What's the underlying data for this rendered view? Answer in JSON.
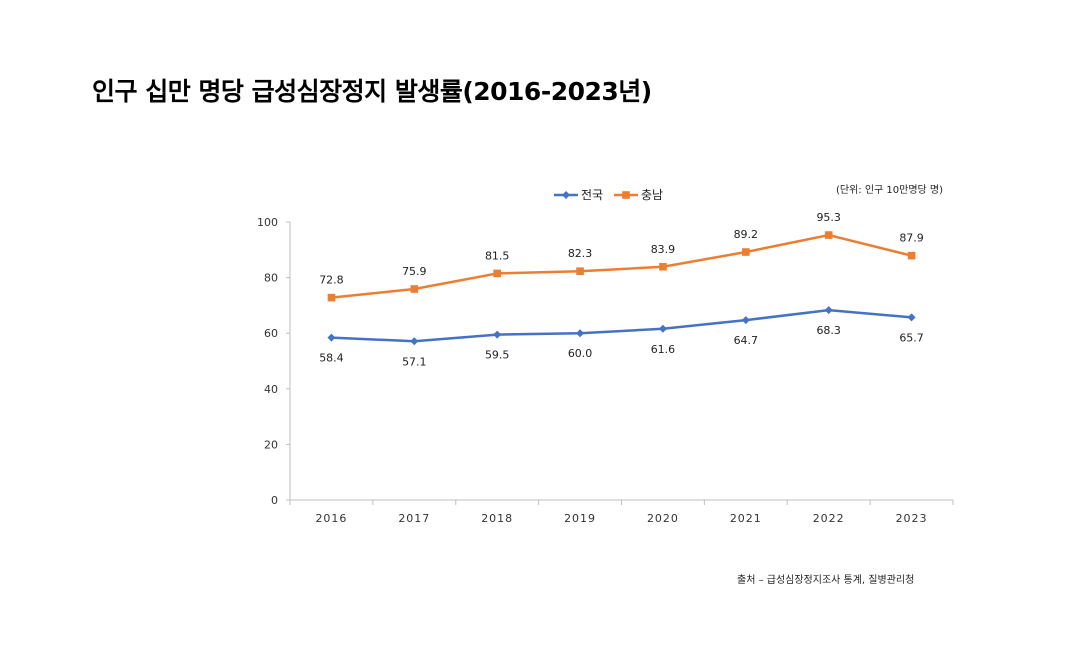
{
  "page": {
    "title": "인구 십만 명당 급성심장정지 발생률(2016-2023년)",
    "unit_note": "(단위: 인구 10만명당 명)",
    "source": "출처 – 급성심장정지조사 통계, 질병관리청"
  },
  "chart_data": {
    "type": "line",
    "title": "인구 십만 명당 급성심장정지 발생률(2016-2023년)",
    "xlabel": "",
    "ylabel": "",
    "categories": [
      "2016",
      "2017",
      "2018",
      "2019",
      "2020",
      "2021",
      "2022",
      "2023"
    ],
    "ylim": [
      0,
      100
    ],
    "yticks": [
      0,
      20,
      40,
      60,
      80,
      100
    ],
    "grid": false,
    "legend_position": "top-center",
    "series": [
      {
        "name": "전국",
        "color": "#4472C4",
        "marker": "diamond",
        "label_position": "below",
        "values": [
          58.4,
          57.1,
          59.5,
          60.0,
          61.6,
          64.7,
          68.3,
          65.7
        ],
        "labels": [
          "58.4",
          "57.1",
          "59.5",
          "60.0",
          "61.6",
          "64.7",
          "68.3",
          "65.7"
        ]
      },
      {
        "name": "충남",
        "color": "#ED7D31",
        "marker": "square",
        "label_position": "above",
        "values": [
          72.8,
          75.9,
          81.5,
          82.3,
          83.9,
          89.2,
          95.3,
          87.9
        ],
        "labels": [
          "72.8",
          "75.9",
          "81.5",
          "82.3",
          "83.9",
          "89.2",
          "95.3",
          "87.9"
        ]
      }
    ]
  }
}
